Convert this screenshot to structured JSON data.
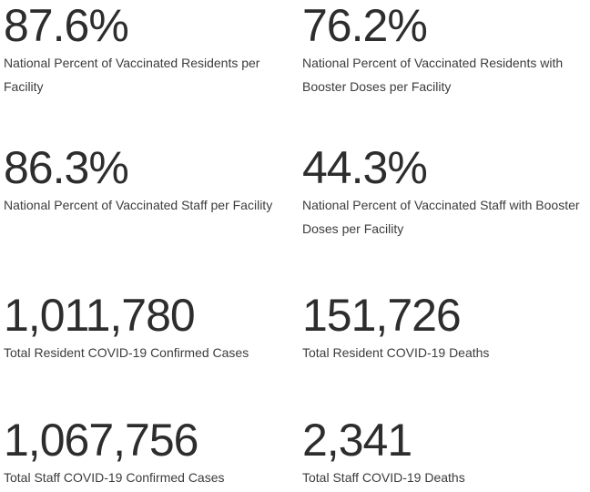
{
  "page": {
    "background_color": "#ffffff",
    "value_color": "#2d2d2d",
    "label_color": "#3c3c3c"
  },
  "stats": [
    {
      "value": "87.6%",
      "label": "National Percent of Vaccinated Residents per Facility"
    },
    {
      "value": "76.2%",
      "label": "National Percent of Vaccinated Residents with Booster Doses per Facility"
    },
    {
      "value": "86.3%",
      "label": "National Percent of Vaccinated Staff per Facility"
    },
    {
      "value": "44.3%",
      "label": "National Percent of Vaccinated Staff with Booster Doses per Facility"
    },
    {
      "value": "1,011,780",
      "label": "Total Resident COVID-19 Confirmed Cases"
    },
    {
      "value": "151,726",
      "label": "Total Resident COVID-19 Deaths"
    },
    {
      "value": "1,067,756",
      "label": "Total Staff COVID-19 Confirmed Cases"
    },
    {
      "value": "2,341",
      "label": "Total Staff COVID-19 Deaths"
    }
  ]
}
